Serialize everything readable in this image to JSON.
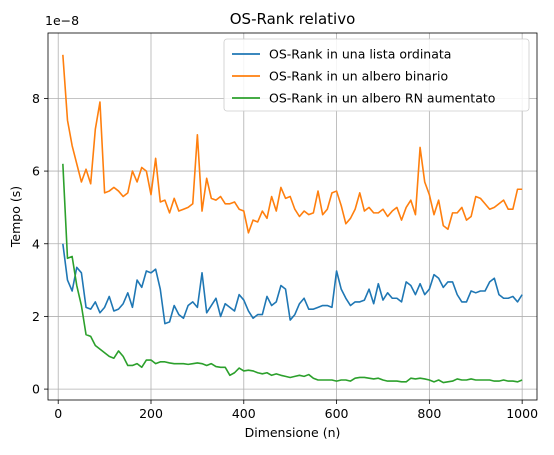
{
  "chart_data": {
    "type": "line",
    "title": "OS-Rank relativo",
    "xlabel": "Dimensione (n)",
    "ylabel": "Tempo (s)",
    "y_offset_text": "1e−8",
    "xlim": [
      -22,
      1032
    ],
    "ylim": [
      -0.3,
      9.8
    ],
    "x_ticks": [
      0,
      200,
      400,
      600,
      800,
      1000
    ],
    "y_ticks": [
      0,
      2,
      4,
      6,
      8
    ],
    "grid": true,
    "legend_position": "top-right",
    "x": [
      10,
      20,
      30,
      40,
      50,
      60,
      70,
      80,
      90,
      100,
      110,
      120,
      130,
      140,
      150,
      160,
      170,
      180,
      190,
      200,
      210,
      220,
      230,
      240,
      250,
      260,
      270,
      280,
      290,
      300,
      310,
      320,
      330,
      340,
      350,
      360,
      370,
      380,
      390,
      400,
      410,
      420,
      430,
      440,
      450,
      460,
      470,
      480,
      490,
      500,
      510,
      520,
      530,
      540,
      550,
      560,
      570,
      580,
      590,
      600,
      610,
      620,
      630,
      640,
      650,
      660,
      670,
      680,
      690,
      700,
      710,
      720,
      730,
      740,
      750,
      760,
      770,
      780,
      790,
      800,
      810,
      820,
      830,
      840,
      850,
      860,
      870,
      880,
      890,
      900,
      910,
      920,
      930,
      940,
      950,
      960,
      970,
      980,
      990,
      1000
    ],
    "series": [
      {
        "name": "OS-Rank in una lista ordinata",
        "color": "#1f77b4",
        "values": [
          4.0,
          3.0,
          2.7,
          3.35,
          3.2,
          2.25,
          2.2,
          2.4,
          2.1,
          2.25,
          2.55,
          2.15,
          2.2,
          2.35,
          2.65,
          2.25,
          3.0,
          2.8,
          3.25,
          3.2,
          3.3,
          2.75,
          1.8,
          1.85,
          2.3,
          2.05,
          1.95,
          2.3,
          2.4,
          2.25,
          3.2,
          2.1,
          2.3,
          2.5,
          2.0,
          2.35,
          2.25,
          2.15,
          2.6,
          2.45,
          2.15,
          1.95,
          2.05,
          2.05,
          2.55,
          2.3,
          2.4,
          2.85,
          2.75,
          1.9,
          2.05,
          2.35,
          2.5,
          2.2,
          2.2,
          2.25,
          2.3,
          2.3,
          2.25,
          3.25,
          2.75,
          2.5,
          2.3,
          2.4,
          2.4,
          2.45,
          2.75,
          2.35,
          2.9,
          2.45,
          2.65,
          2.5,
          2.5,
          2.4,
          2.95,
          2.85,
          2.6,
          2.9,
          2.6,
          2.75,
          3.15,
          3.05,
          2.8,
          2.95,
          2.95,
          2.6,
          2.4,
          2.4,
          2.7,
          2.65,
          2.7,
          2.7,
          2.95,
          3.05,
          2.6,
          2.5,
          2.5,
          2.55,
          2.4,
          2.6
        ]
      },
      {
        "name": "OS-Rank in un albero binario",
        "color": "#ff7f0e",
        "values": [
          9.2,
          7.4,
          6.7,
          6.2,
          5.7,
          6.05,
          5.65,
          7.15,
          7.9,
          5.4,
          5.45,
          5.55,
          5.45,
          5.3,
          5.4,
          6.0,
          5.7,
          6.1,
          6.0,
          5.35,
          6.35,
          5.15,
          5.2,
          4.85,
          5.25,
          4.9,
          4.95,
          5.0,
          5.1,
          7.0,
          4.9,
          5.8,
          5.25,
          5.2,
          5.3,
          5.1,
          5.1,
          5.15,
          4.95,
          4.9,
          4.3,
          4.65,
          4.6,
          4.9,
          4.7,
          5.3,
          4.9,
          5.55,
          5.25,
          5.3,
          4.95,
          4.75,
          4.9,
          4.8,
          4.85,
          5.45,
          4.8,
          4.95,
          5.4,
          5.45,
          5.05,
          4.55,
          4.7,
          4.95,
          5.4,
          4.9,
          5.0,
          4.85,
          4.85,
          4.95,
          4.75,
          4.9,
          5.0,
          4.65,
          5.0,
          5.2,
          4.8,
          6.65,
          5.7,
          5.35,
          4.8,
          5.2,
          4.5,
          4.4,
          4.85,
          4.85,
          5.0,
          4.65,
          4.75,
          5.3,
          5.25,
          5.1,
          4.95,
          5.0,
          5.1,
          5.2,
          4.95,
          4.95,
          5.5,
          5.5
        ]
      },
      {
        "name": "OS-Rank in un albero RN aumentato",
        "color": "#2ca02c",
        "values": [
          6.2,
          3.6,
          3.65,
          2.85,
          2.3,
          1.5,
          1.45,
          1.2,
          1.1,
          1.0,
          0.9,
          0.85,
          1.05,
          0.9,
          0.65,
          0.65,
          0.7,
          0.6,
          0.8,
          0.8,
          0.7,
          0.75,
          0.75,
          0.72,
          0.7,
          0.7,
          0.7,
          0.68,
          0.7,
          0.72,
          0.7,
          0.65,
          0.7,
          0.62,
          0.6,
          0.6,
          0.38,
          0.45,
          0.58,
          0.5,
          0.52,
          0.5,
          0.45,
          0.42,
          0.45,
          0.38,
          0.42,
          0.38,
          0.35,
          0.32,
          0.35,
          0.38,
          0.35,
          0.4,
          0.3,
          0.25,
          0.25,
          0.25,
          0.25,
          0.22,
          0.25,
          0.25,
          0.22,
          0.3,
          0.32,
          0.32,
          0.3,
          0.28,
          0.3,
          0.25,
          0.22,
          0.22,
          0.22,
          0.2,
          0.2,
          0.3,
          0.28,
          0.3,
          0.28,
          0.25,
          0.2,
          0.25,
          0.18,
          0.2,
          0.22,
          0.28,
          0.25,
          0.25,
          0.28,
          0.25,
          0.25,
          0.25,
          0.25,
          0.22,
          0.22,
          0.25,
          0.22,
          0.22,
          0.2,
          0.25
        ]
      }
    ]
  }
}
